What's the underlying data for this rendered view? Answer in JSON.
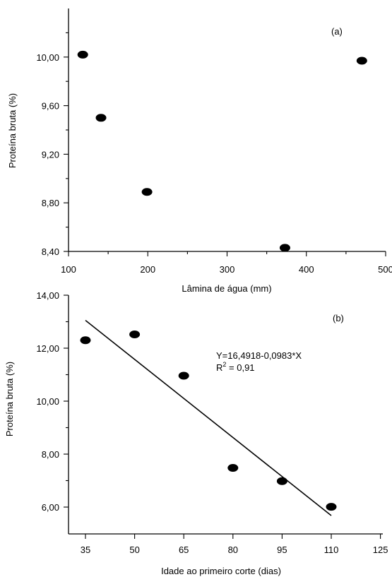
{
  "chart_data": [
    {
      "type": "scatter",
      "panel_label": "(a)",
      "xlabel": "Lâmina de água (mm)",
      "ylabel": "Proteína bruta (%)",
      "xlim": [
        100,
        500
      ],
      "ylim": [
        8.4,
        10.4
      ],
      "x_ticks": [
        "100",
        "200",
        "300",
        "400",
        "500"
      ],
      "y_ticks": [
        "8,40",
        "8,80",
        "9,20",
        "9,60",
        "10,00"
      ],
      "series": [
        {
          "x": [
            118,
            141,
            199,
            373,
            470
          ],
          "y": [
            10.02,
            9.5,
            8.89,
            8.43,
            9.97
          ]
        }
      ]
    },
    {
      "type": "scatter",
      "panel_label": "(b)",
      "xlabel": "Idade ao primeiro corte (dias)",
      "ylabel": "Proteína bruta (%)",
      "xlim": [
        25,
        125
      ],
      "ylim": [
        5.0,
        14.0
      ],
      "x_ticks": [
        "35",
        "50",
        "65",
        "80",
        "95",
        "110",
        "125"
      ],
      "y_ticks": [
        "6,00",
        "8,00",
        "10,00",
        "12,00",
        "14,00"
      ],
      "equation": "Y=16,4918-0,0983*X",
      "r2_prefix": "R",
      "r2_sup": "2",
      "r2_value": " = 0,91",
      "series": [
        {
          "x": [
            35,
            50,
            65,
            80,
            95,
            110
          ],
          "y": [
            12.3,
            12.52,
            10.96,
            7.48,
            6.98,
            6.01
          ]
        }
      ],
      "fit": {
        "intercept": 16.4918,
        "slope": -0.0983,
        "x_range": [
          35,
          110
        ]
      }
    }
  ]
}
